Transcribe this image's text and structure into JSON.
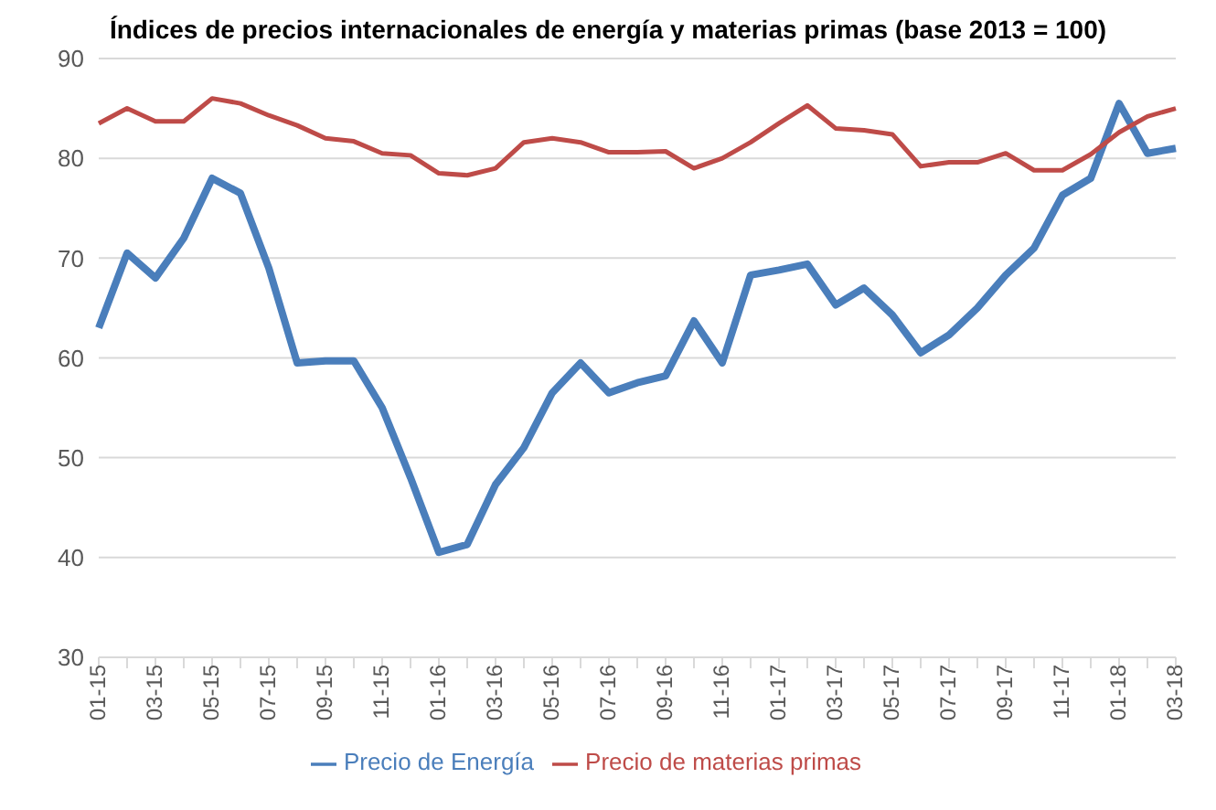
{
  "chart_data": {
    "type": "line",
    "title": "Índices de precios internacionales de energía y materias primas  (base 2013 = 100)",
    "categories": [
      "01-15",
      null,
      "03-15",
      null,
      "05-15",
      null,
      "07-15",
      null,
      "09-15",
      null,
      "11-15",
      null,
      "01-16",
      null,
      "03-16",
      null,
      "05-16",
      null,
      "07-16",
      null,
      "09-16",
      null,
      "11-16",
      null,
      "01-17",
      null,
      "03-17",
      null,
      "05-17",
      null,
      "07-17",
      null,
      "09-17",
      null,
      "11-17",
      null,
      "01-18",
      null,
      "03-18"
    ],
    "series": [
      {
        "name": "Precio de Energía",
        "color": "#4a7ebb",
        "values": [
          63,
          70.5,
          68,
          72,
          78,
          76.5,
          69,
          59.5,
          59.7,
          59.7,
          55,
          48,
          40.5,
          41.3,
          47.3,
          51,
          56.5,
          59.5,
          56.5,
          57.5,
          58.2,
          63.7,
          59.5,
          68.3,
          68.8,
          69.4,
          65.3,
          67,
          64.3,
          60.5,
          62.3,
          65,
          68.3,
          71,
          76.3,
          78,
          85.5,
          80.5,
          81
        ]
      },
      {
        "name": "Precio de materias primas",
        "color": "#be4b48",
        "values": [
          83.5,
          85,
          83.7,
          83.7,
          86,
          85.5,
          84.3,
          83.3,
          82,
          81.7,
          80.5,
          80.3,
          78.5,
          78.3,
          79,
          81.6,
          82,
          81.6,
          80.6,
          80.6,
          80.7,
          79,
          80,
          81.6,
          83.5,
          85.3,
          83,
          82.8,
          82.4,
          79.2,
          79.6,
          79.6,
          80.5,
          78.8,
          78.8,
          80.4,
          82.6,
          84.2,
          85
        ]
      }
    ],
    "ylim": [
      30,
      90
    ],
    "yticks": [
      30,
      40,
      50,
      60,
      70,
      80,
      90
    ],
    "grid": "y",
    "legend": "bottom",
    "marker": "none",
    "line_style": "solid"
  }
}
